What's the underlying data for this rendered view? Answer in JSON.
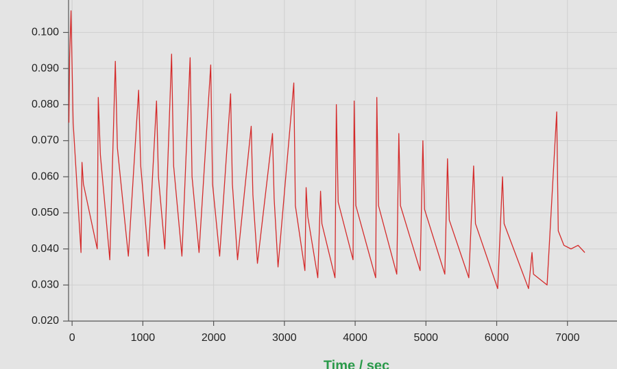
{
  "chart_data": {
    "type": "line",
    "x_label": "Time / sec",
    "x": [
      -45,
      -35,
      -15,
      15,
      126,
      140,
      160,
      355,
      370,
      400,
      533,
      611,
      640,
      795,
      940,
      970,
      1077,
      1193,
      1220,
      1310,
      1406,
      1435,
      1552,
      1668,
      1695,
      1794,
      1959,
      1985,
      2085,
      2240,
      2265,
      2338,
      2531,
      2555,
      2619,
      2832,
      2855,
      2910,
      3133,
      3155,
      3290,
      3307,
      3330,
      3472,
      3511,
      3530,
      3715,
      3734,
      3760,
      3970,
      3986,
      4010,
      4290,
      4306,
      4330,
      4588,
      4617,
      4640,
      4918,
      4957,
      4980,
      5267,
      5305,
      5330,
      5606,
      5674,
      5700,
      6014,
      6082,
      6105,
      6450,
      6499,
      6520,
      6712,
      6848,
      6870,
      6950,
      7050,
      7150,
      7245
    ],
    "series": [
      {
        "color": "#d42a2a",
        "values": [
          0.075,
          0.093,
          0.106,
          0.075,
          0.039,
          0.064,
          0.058,
          0.04,
          0.082,
          0.066,
          0.037,
          0.092,
          0.068,
          0.038,
          0.084,
          0.063,
          0.038,
          0.081,
          0.06,
          0.04,
          0.094,
          0.063,
          0.038,
          0.093,
          0.06,
          0.039,
          0.091,
          0.058,
          0.038,
          0.083,
          0.058,
          0.037,
          0.074,
          0.055,
          0.036,
          0.072,
          0.054,
          0.035,
          0.086,
          0.052,
          0.034,
          0.057,
          0.049,
          0.032,
          0.056,
          0.047,
          0.032,
          0.08,
          0.053,
          0.037,
          0.081,
          0.052,
          0.032,
          0.082,
          0.052,
          0.033,
          0.072,
          0.052,
          0.034,
          0.07,
          0.051,
          0.033,
          0.065,
          0.048,
          0.032,
          0.063,
          0.047,
          0.029,
          0.06,
          0.047,
          0.029,
          0.039,
          0.033,
          0.03,
          0.078,
          0.045,
          0.041,
          0.04,
          0.041,
          0.039
        ]
      }
    ],
    "xlim": [
      -50,
      7700
    ],
    "ylim": [
      0.02,
      0.109
    ],
    "xticks": [
      0,
      1000,
      2000,
      3000,
      4000,
      5000,
      6000,
      7000
    ],
    "yticks": [
      {
        "value": 0.02,
        "label": "0.020"
      },
      {
        "value": 0.03,
        "label": "0.030"
      },
      {
        "value": 0.04,
        "label": "0.040"
      },
      {
        "value": 0.05,
        "label": "0.050"
      },
      {
        "value": 0.06,
        "label": "0.060"
      },
      {
        "value": 0.07,
        "label": "0.070"
      },
      {
        "value": 0.08,
        "label": "0.080"
      },
      {
        "value": 0.09,
        "label": "0.090"
      },
      {
        "value": 0.1,
        "label": "0.100"
      }
    ],
    "grid": true
  }
}
